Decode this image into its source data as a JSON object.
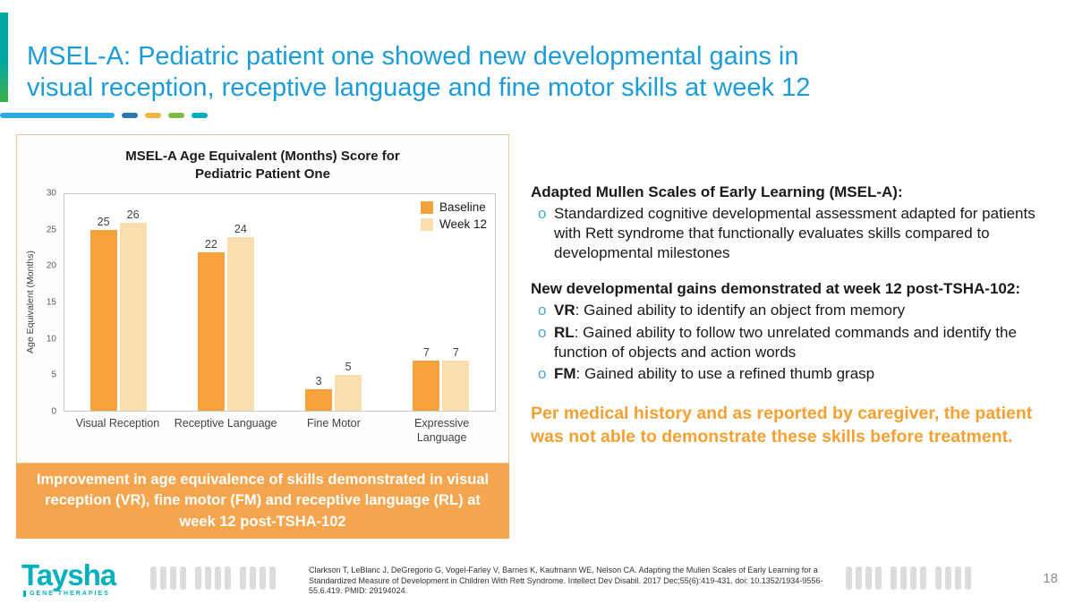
{
  "title": {
    "line1": "MSEL-A: Pediatric patient one showed new developmental gains in",
    "line2": "visual reception, receptive language and fine motor skills at week 12"
  },
  "colors": {
    "title_blue": "#1C9CD8",
    "bar_baseline_orange": "#F9A23C",
    "bar_week12_peach": "#FCDDAE",
    "caption_box_orange": "#F5A54E",
    "highlight_orange": "#F5A033",
    "brand_teal": "#00B1BC",
    "bullet_blue": "#4BACC6"
  },
  "chart_data": {
    "type": "bar",
    "title": "MSEL-A Age Equivalent (Months) Score for Pediatric Patient One",
    "xlabel": "",
    "ylabel": "Age Equivalent (Months)",
    "ylim": [
      0,
      30
    ],
    "yticks": [
      0,
      5,
      10,
      15,
      20,
      25,
      30
    ],
    "grid": false,
    "legend_position": "top-right",
    "categories": [
      "Visual Reception",
      "Receptive Language",
      "Fine Motor",
      "Expressive Language"
    ],
    "series": [
      {
        "name": "Baseline",
        "color": "#F9A23C",
        "values": [
          25,
          22,
          3,
          7
        ]
      },
      {
        "name": "Week 12",
        "color": "#FCDDAE",
        "values": [
          26,
          24,
          5,
          7
        ]
      }
    ]
  },
  "caption_box": {
    "text": "Improvement in age equivalence of skills demonstrated in visual reception (VR), fine motor (FM) and receptive language (RL) at week 12 post-TSHA-102"
  },
  "right_panel": {
    "bullet_marker": "o",
    "heading1": "Adapted Mullen Scales of Early Learning (MSEL-A):",
    "bullet1": "Standardized cognitive developmental assessment adapted for patients with Rett syndrome that functionally evaluates skills compared to developmental milestones",
    "heading2": "New developmental gains demonstrated at week 12 post-TSHA-102:",
    "bullets": [
      {
        "prefix": "VR",
        "text": ": Gained ability to identify an object from memory"
      },
      {
        "prefix": "RL",
        "text": ": Gained ability to follow two unrelated commands and identify the function of objects and action words"
      },
      {
        "prefix": "FM",
        "text": ": Gained ability to use a refined thumb grasp"
      }
    ],
    "highlight": "Per medical history and as reported by caregiver, the patient was not able to demonstrate these skills before treatment."
  },
  "footer": {
    "logo_name": "Taysha",
    "logo_sub": "GENE THERAPIES",
    "citation": "Clarkson T, LeBlanc J, DeGregorio G, Vogel-Farley V, Barnes K, Kaufmann WE, Nelson CA. Adapting the Mullen Scales of Early Learning for a Standardized Measure of Development in Children With Rett Syndrome. Intellect Dev Disabil. 2017 Dec;55(6):419-431. doi: 10.1352/1934-9556-55.6.419. PMID: 29194024.",
    "page_number": "18"
  }
}
